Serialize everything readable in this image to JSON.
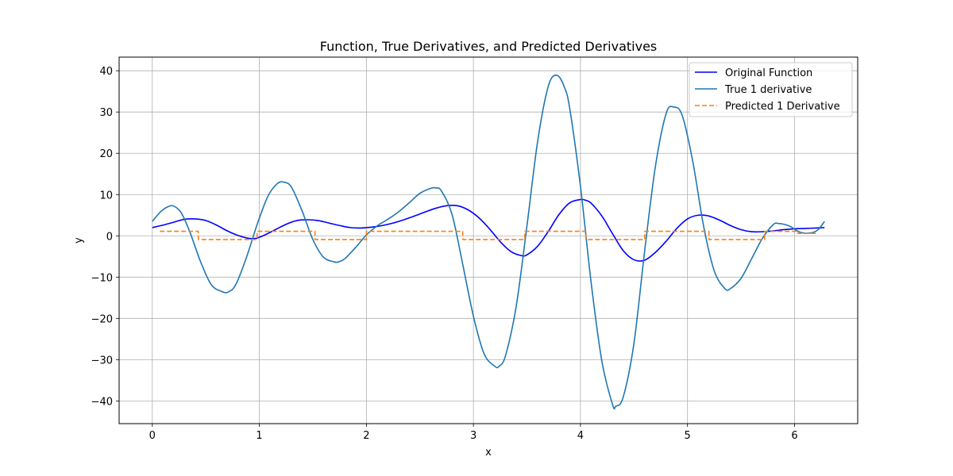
{
  "chart_data": {
    "type": "line",
    "title": "Function, True Derivatives, and Predicted Derivatives",
    "xlabel": "x",
    "ylabel": "y",
    "xlim": [
      -0.31,
      6.59
    ],
    "ylim": [
      -45.5,
      43.3
    ],
    "xticks": [
      0,
      1,
      2,
      3,
      4,
      5,
      6
    ],
    "xtick_labels": [
      "0",
      "1",
      "2",
      "3",
      "4",
      "5",
      "6"
    ],
    "yticks": [
      -40,
      -30,
      -20,
      -10,
      0,
      10,
      20,
      30,
      40
    ],
    "ytick_labels": [
      "−40",
      "−30",
      "−20",
      "−10",
      "0",
      "10",
      "20",
      "30",
      "40"
    ],
    "grid": true,
    "legend_position": "top-right",
    "series": [
      {
        "name": "Original Function",
        "color": "#0000ff",
        "linestyle": "solid",
        "x": [
          0.0,
          0.1,
          0.2,
          0.3,
          0.4,
          0.5,
          0.6,
          0.7,
          0.8,
          0.9,
          0.97,
          1.05,
          1.15,
          1.25,
          1.35,
          1.45,
          1.55,
          1.65,
          1.75,
          1.85,
          1.95,
          2.05,
          2.15,
          2.25,
          2.35,
          2.45,
          2.55,
          2.65,
          2.75,
          2.85,
          2.95,
          3.05,
          3.15,
          3.25,
          3.35,
          3.45,
          3.5,
          3.6,
          3.7,
          3.8,
          3.9,
          4.0,
          4.05,
          4.1,
          4.2,
          4.3,
          4.4,
          4.5,
          4.6,
          4.7,
          4.8,
          4.9,
          5.0,
          5.1,
          5.2,
          5.3,
          5.4,
          5.5,
          5.6,
          5.7,
          5.8,
          5.9,
          6.0,
          6.1,
          6.2,
          6.28
        ],
        "y": [
          2.0,
          2.6,
          3.3,
          4.0,
          4.1,
          3.7,
          2.6,
          1.2,
          0.1,
          -0.6,
          -0.6,
          0.2,
          1.5,
          2.8,
          3.7,
          3.9,
          3.7,
          3.1,
          2.5,
          2.0,
          1.9,
          2.1,
          2.5,
          3.1,
          3.9,
          4.8,
          5.8,
          6.7,
          7.3,
          7.3,
          6.3,
          4.4,
          1.7,
          -1.4,
          -3.8,
          -4.8,
          -4.6,
          -2.5,
          1.1,
          5.2,
          8.0,
          8.8,
          8.6,
          7.9,
          4.8,
          0.5,
          -3.6,
          -5.8,
          -5.9,
          -4.0,
          -1.3,
          1.8,
          4.1,
          5.0,
          4.8,
          3.8,
          2.5,
          1.5,
          1.0,
          1.0,
          1.2,
          1.5,
          1.7,
          1.8,
          1.9,
          2.0
        ]
      },
      {
        "name": "True 1 derivative",
        "color": "#1f77b4",
        "linestyle": "solid",
        "x": [
          0.0,
          0.08,
          0.15,
          0.2,
          0.27,
          0.35,
          0.45,
          0.55,
          0.65,
          0.71,
          0.78,
          0.88,
          0.98,
          1.08,
          1.17,
          1.23,
          1.3,
          1.4,
          1.5,
          1.6,
          1.7,
          1.74,
          1.8,
          1.9,
          2.0,
          2.1,
          2.2,
          2.3,
          2.4,
          2.5,
          2.6,
          2.65,
          2.7,
          2.8,
          2.9,
          3.0,
          3.1,
          3.2,
          3.24,
          3.3,
          3.4,
          3.5,
          3.6,
          3.7,
          3.78,
          3.85,
          3.9,
          4.0,
          4.1,
          4.2,
          4.3,
          4.33,
          4.4,
          4.5,
          4.6,
          4.7,
          4.8,
          4.87,
          4.95,
          5.05,
          5.15,
          5.25,
          5.35,
          5.4,
          5.5,
          5.6,
          5.7,
          5.8,
          5.85,
          5.95,
          6.05,
          6.15,
          6.22,
          6.28
        ],
        "y": [
          3.5,
          5.9,
          7.1,
          7.2,
          5.6,
          1.0,
          -6.2,
          -11.8,
          -13.5,
          -13.6,
          -11.8,
          -5.2,
          2.8,
          9.6,
          12.7,
          13.0,
          11.8,
          6.0,
          -0.9,
          -5.2,
          -6.3,
          -6.3,
          -5.5,
          -2.8,
          0.2,
          2.4,
          4.0,
          5.8,
          8.0,
          10.3,
          11.5,
          11.6,
          10.9,
          5.2,
          -6.9,
          -19.5,
          -28.6,
          -31.6,
          -31.6,
          -29.0,
          -17.0,
          2.4,
          22.9,
          36.3,
          38.9,
          36.0,
          30.8,
          12.0,
          -11.4,
          -30.4,
          -40.9,
          -41.3,
          -39.0,
          -26.0,
          -3.6,
          16.8,
          29.6,
          31.2,
          29.2,
          17.9,
          2.4,
          -8.5,
          -12.8,
          -12.8,
          -10.3,
          -5.5,
          -0.6,
          2.7,
          3.0,
          2.4,
          0.9,
          0.7,
          1.5,
          3.5
        ]
      },
      {
        "name": "Predicted 1 Derivative",
        "color": "#ff7f0e",
        "linestyle": "dashed",
        "x": [
          0.07,
          0.43,
          0.43,
          0.98,
          0.98,
          1.52,
          1.52,
          2.0,
          2.0,
          2.9,
          2.9,
          3.48,
          3.48,
          4.05,
          4.05,
          4.6,
          4.6,
          5.2,
          5.2,
          5.72,
          5.72,
          6.03,
          6.03,
          6.2
        ],
        "y": [
          1.1,
          1.1,
          -0.9,
          -0.9,
          1.1,
          1.1,
          -0.9,
          -0.9,
          1.1,
          1.1,
          -0.9,
          -0.9,
          1.1,
          1.1,
          -0.9,
          -0.9,
          1.1,
          1.1,
          -0.9,
          -0.9,
          1.1,
          1.1,
          0.6,
          0.6
        ]
      }
    ]
  }
}
